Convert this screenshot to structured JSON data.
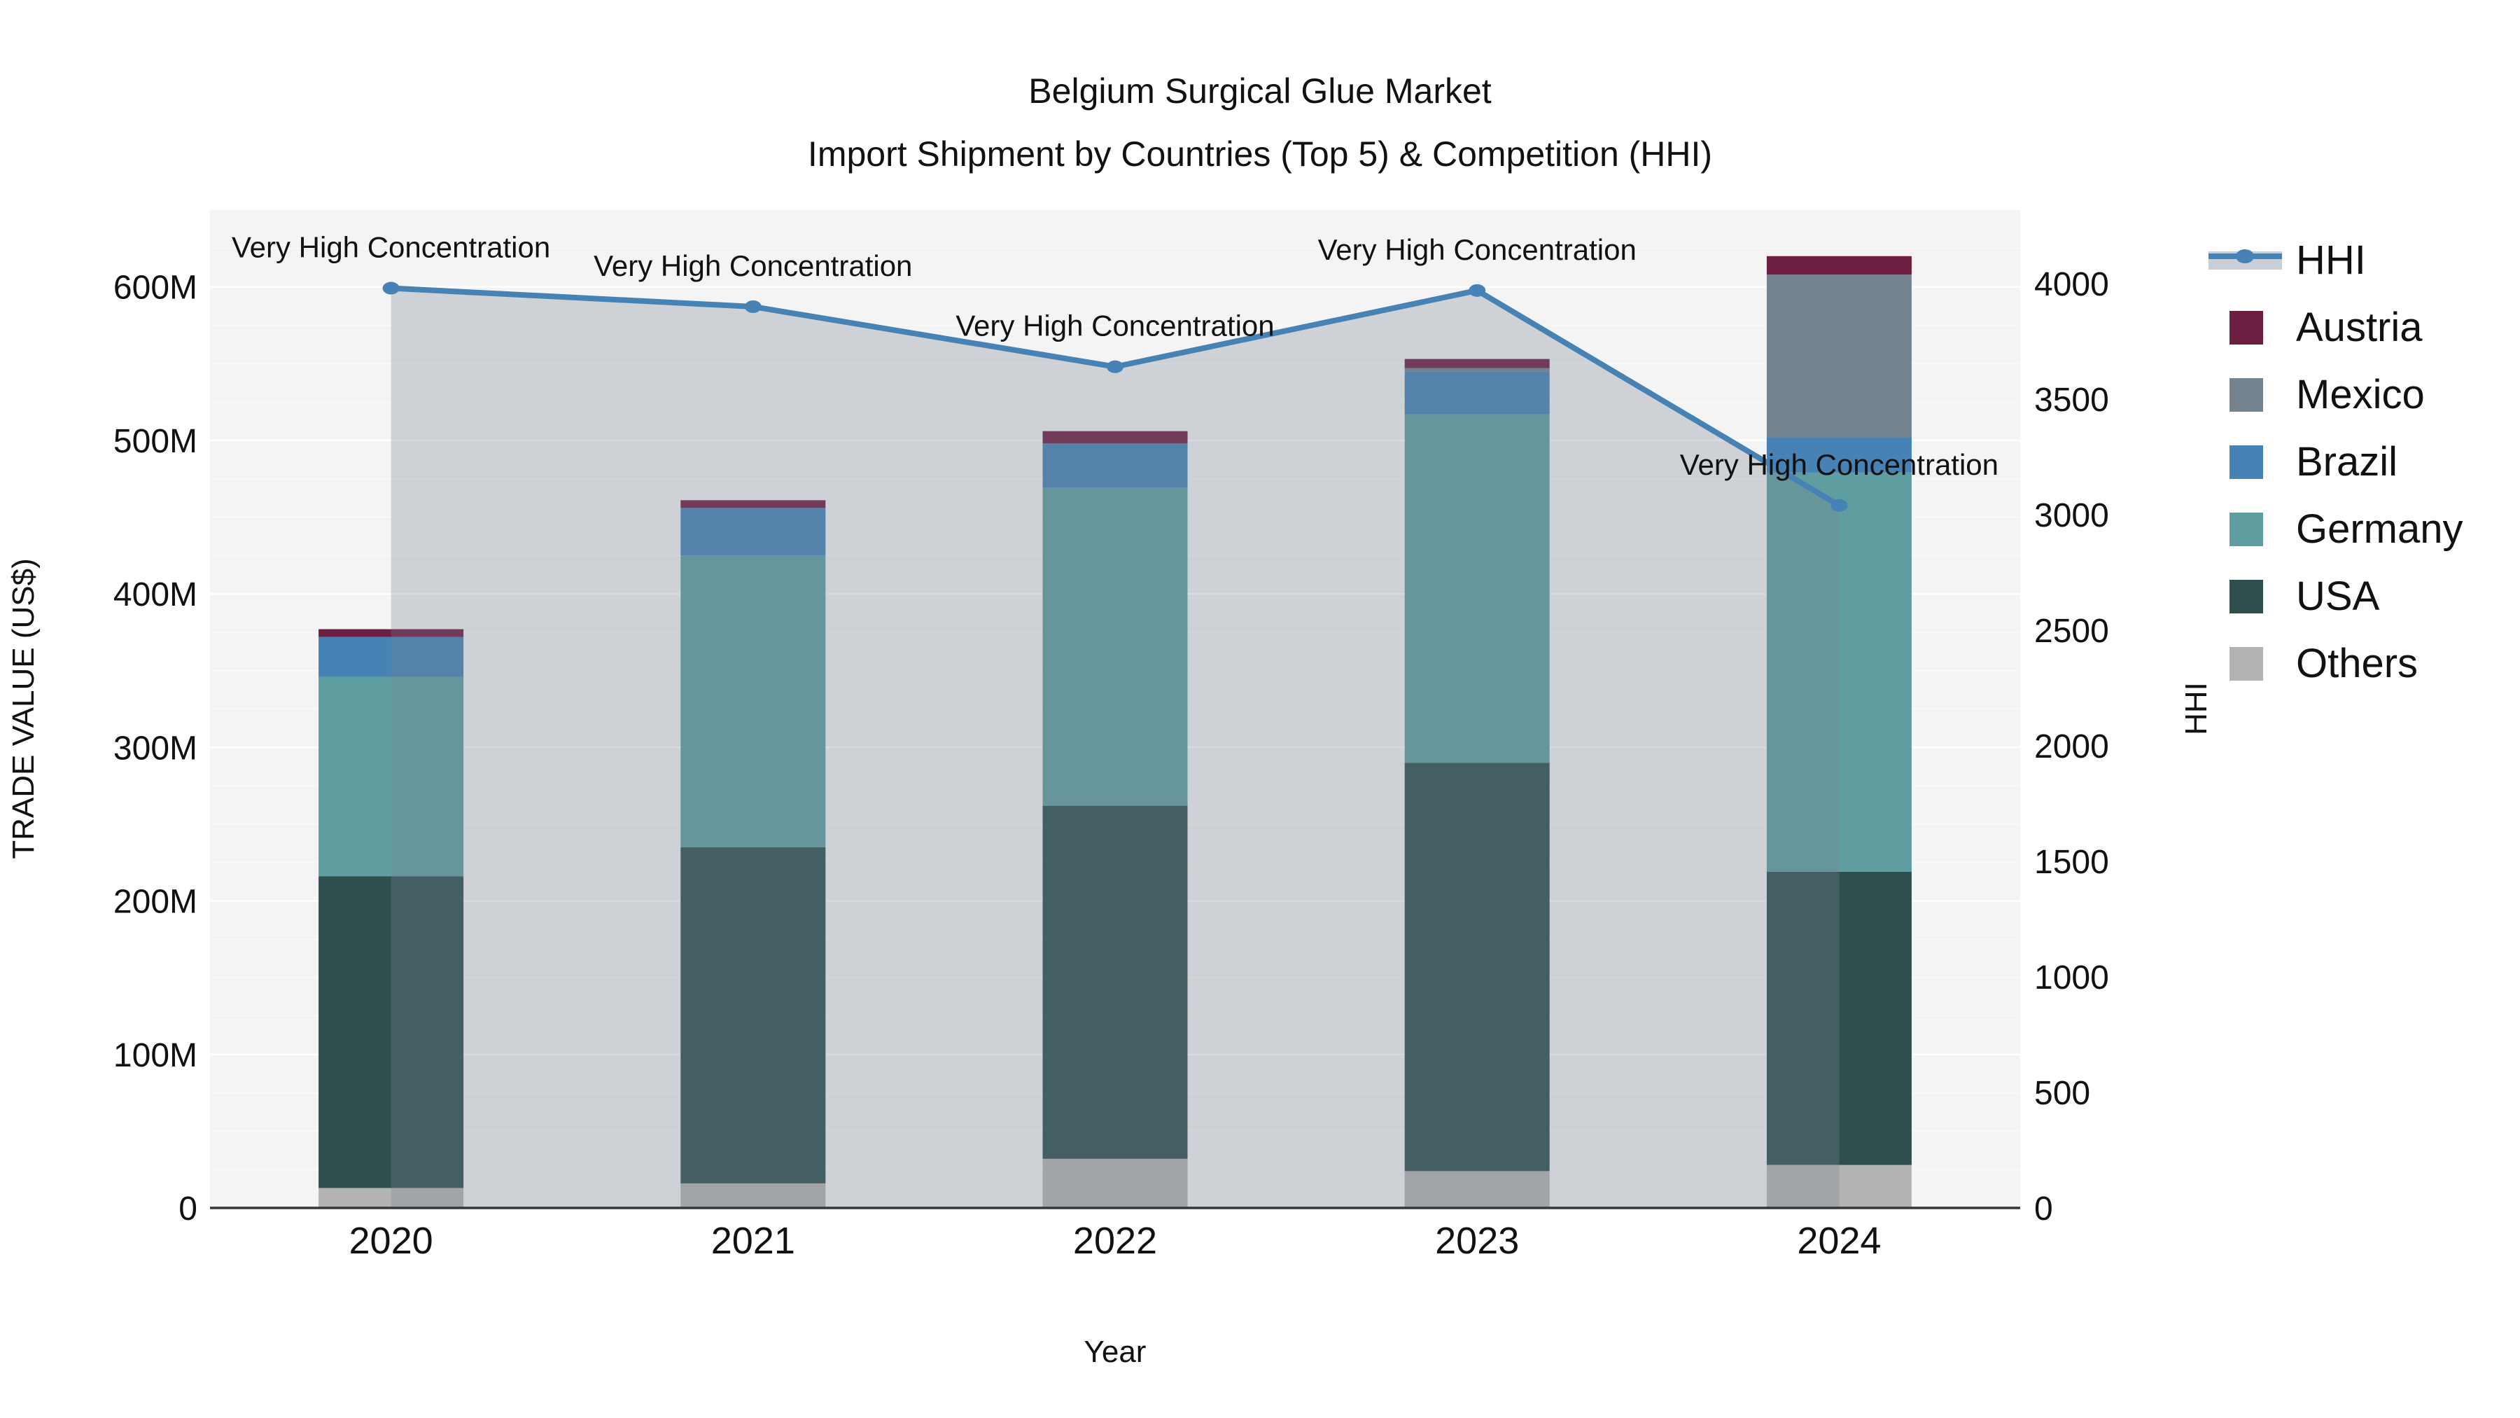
{
  "title": {
    "line1": "Belgium Surgical Glue Market",
    "line2": "Import Shipment by Countries (Top 5) & Competition (HHI)"
  },
  "chart_data": {
    "type": "bar+line",
    "categories": [
      "2020",
      "2021",
      "2022",
      "2023",
      "2024"
    ],
    "series": [
      {
        "name": "Others",
        "color": "#b3b3b3",
        "values": [
          13,
          16,
          32,
          24,
          28
        ]
      },
      {
        "name": "USA",
        "color": "#2f4f4f",
        "values": [
          203,
          219,
          230,
          266,
          191
        ]
      },
      {
        "name": "Germany",
        "color": "#5f9ea0",
        "values": [
          130,
          190,
          207,
          227,
          260
        ]
      },
      {
        "name": "Brazil",
        "color": "#4682b4",
        "values": [
          26,
          31,
          29,
          28,
          23
        ]
      },
      {
        "name": "Mexico",
        "color": "#75838f",
        "values": [
          0,
          0,
          0,
          2,
          106
        ]
      },
      {
        "name": "Austria",
        "color": "#6e1e41",
        "values": [
          5,
          5,
          8,
          6,
          12
        ]
      }
    ],
    "line_series": {
      "name": "HHI",
      "color": "#4682b4",
      "area_fill": "rgba(120,132,150,0.30)",
      "values": [
        3980,
        3900,
        3640,
        3970,
        3040
      ],
      "annotations": [
        "Very High Concentration",
        "Very High Concentration",
        "Very High Concentration",
        "Very High Concentration",
        "Very High Concentration"
      ]
    },
    "left_axis": {
      "label": "TRADE VALUE (US$)",
      "ticks": [
        0,
        100,
        200,
        300,
        400,
        500,
        600
      ],
      "tick_labels": [
        "0",
        "100M",
        "200M",
        "300M",
        "400M",
        "500M",
        "600M"
      ],
      "max": 650
    },
    "right_axis": {
      "label": "HHI",
      "ticks": [
        0,
        500,
        1000,
        1500,
        2000,
        2500,
        3000,
        3500,
        4000
      ],
      "tick_labels": [
        "0",
        "500",
        "1000",
        "1500",
        "2000",
        "2500",
        "3000",
        "3500",
        "4000"
      ],
      "max": 4318
    },
    "x_axis": {
      "label": "Year"
    },
    "legend": [
      "HHI",
      "Austria",
      "Mexico",
      "Brazil",
      "Germany",
      "USA",
      "Others"
    ],
    "style": {
      "plot_bg": "#f4f4f4",
      "grid_major": "#ffffff",
      "grid_minor": "rgba(255,255,255,0.55)",
      "axis_line": "#37373b"
    }
  }
}
